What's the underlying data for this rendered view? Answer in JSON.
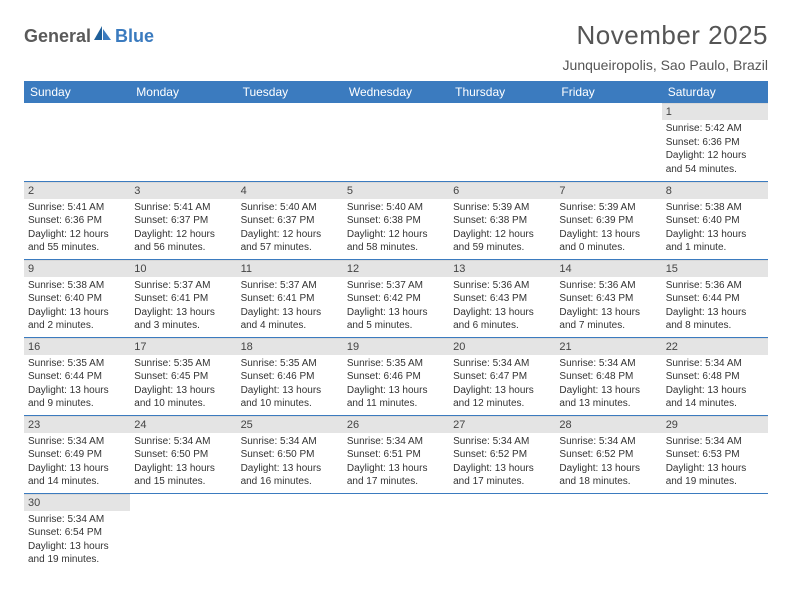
{
  "logo": {
    "text1": "General",
    "text2": "Blue"
  },
  "title": "November 2025",
  "location": "Junqueiropolis, Sao Paulo, Brazil",
  "colors": {
    "header_bg": "#3b7bbf",
    "header_text": "#ffffff",
    "daynum_bg": "#e4e4e4",
    "cell_border": "#3b7bbf",
    "body_text": "#333333",
    "title_text": "#555555"
  },
  "typography": {
    "title_fontsize": 26,
    "location_fontsize": 14,
    "weekday_fontsize": 12,
    "daynum_fontsize": 11,
    "cell_fontsize": 10
  },
  "weekdays": [
    "Sunday",
    "Monday",
    "Tuesday",
    "Wednesday",
    "Thursday",
    "Friday",
    "Saturday"
  ],
  "weeks": [
    [
      null,
      null,
      null,
      null,
      null,
      null,
      {
        "n": "1",
        "sr": "Sunrise: 5:42 AM",
        "ss": "Sunset: 6:36 PM",
        "d1": "Daylight: 12 hours",
        "d2": "and 54 minutes."
      }
    ],
    [
      {
        "n": "2",
        "sr": "Sunrise: 5:41 AM",
        "ss": "Sunset: 6:36 PM",
        "d1": "Daylight: 12 hours",
        "d2": "and 55 minutes."
      },
      {
        "n": "3",
        "sr": "Sunrise: 5:41 AM",
        "ss": "Sunset: 6:37 PM",
        "d1": "Daylight: 12 hours",
        "d2": "and 56 minutes."
      },
      {
        "n": "4",
        "sr": "Sunrise: 5:40 AM",
        "ss": "Sunset: 6:37 PM",
        "d1": "Daylight: 12 hours",
        "d2": "and 57 minutes."
      },
      {
        "n": "5",
        "sr": "Sunrise: 5:40 AM",
        "ss": "Sunset: 6:38 PM",
        "d1": "Daylight: 12 hours",
        "d2": "and 58 minutes."
      },
      {
        "n": "6",
        "sr": "Sunrise: 5:39 AM",
        "ss": "Sunset: 6:38 PM",
        "d1": "Daylight: 12 hours",
        "d2": "and 59 minutes."
      },
      {
        "n": "7",
        "sr": "Sunrise: 5:39 AM",
        "ss": "Sunset: 6:39 PM",
        "d1": "Daylight: 13 hours",
        "d2": "and 0 minutes."
      },
      {
        "n": "8",
        "sr": "Sunrise: 5:38 AM",
        "ss": "Sunset: 6:40 PM",
        "d1": "Daylight: 13 hours",
        "d2": "and 1 minute."
      }
    ],
    [
      {
        "n": "9",
        "sr": "Sunrise: 5:38 AM",
        "ss": "Sunset: 6:40 PM",
        "d1": "Daylight: 13 hours",
        "d2": "and 2 minutes."
      },
      {
        "n": "10",
        "sr": "Sunrise: 5:37 AM",
        "ss": "Sunset: 6:41 PM",
        "d1": "Daylight: 13 hours",
        "d2": "and 3 minutes."
      },
      {
        "n": "11",
        "sr": "Sunrise: 5:37 AM",
        "ss": "Sunset: 6:41 PM",
        "d1": "Daylight: 13 hours",
        "d2": "and 4 minutes."
      },
      {
        "n": "12",
        "sr": "Sunrise: 5:37 AM",
        "ss": "Sunset: 6:42 PM",
        "d1": "Daylight: 13 hours",
        "d2": "and 5 minutes."
      },
      {
        "n": "13",
        "sr": "Sunrise: 5:36 AM",
        "ss": "Sunset: 6:43 PM",
        "d1": "Daylight: 13 hours",
        "d2": "and 6 minutes."
      },
      {
        "n": "14",
        "sr": "Sunrise: 5:36 AM",
        "ss": "Sunset: 6:43 PM",
        "d1": "Daylight: 13 hours",
        "d2": "and 7 minutes."
      },
      {
        "n": "15",
        "sr": "Sunrise: 5:36 AM",
        "ss": "Sunset: 6:44 PM",
        "d1": "Daylight: 13 hours",
        "d2": "and 8 minutes."
      }
    ],
    [
      {
        "n": "16",
        "sr": "Sunrise: 5:35 AM",
        "ss": "Sunset: 6:44 PM",
        "d1": "Daylight: 13 hours",
        "d2": "and 9 minutes."
      },
      {
        "n": "17",
        "sr": "Sunrise: 5:35 AM",
        "ss": "Sunset: 6:45 PM",
        "d1": "Daylight: 13 hours",
        "d2": "and 10 minutes."
      },
      {
        "n": "18",
        "sr": "Sunrise: 5:35 AM",
        "ss": "Sunset: 6:46 PM",
        "d1": "Daylight: 13 hours",
        "d2": "and 10 minutes."
      },
      {
        "n": "19",
        "sr": "Sunrise: 5:35 AM",
        "ss": "Sunset: 6:46 PM",
        "d1": "Daylight: 13 hours",
        "d2": "and 11 minutes."
      },
      {
        "n": "20",
        "sr": "Sunrise: 5:34 AM",
        "ss": "Sunset: 6:47 PM",
        "d1": "Daylight: 13 hours",
        "d2": "and 12 minutes."
      },
      {
        "n": "21",
        "sr": "Sunrise: 5:34 AM",
        "ss": "Sunset: 6:48 PM",
        "d1": "Daylight: 13 hours",
        "d2": "and 13 minutes."
      },
      {
        "n": "22",
        "sr": "Sunrise: 5:34 AM",
        "ss": "Sunset: 6:48 PM",
        "d1": "Daylight: 13 hours",
        "d2": "and 14 minutes."
      }
    ],
    [
      {
        "n": "23",
        "sr": "Sunrise: 5:34 AM",
        "ss": "Sunset: 6:49 PM",
        "d1": "Daylight: 13 hours",
        "d2": "and 14 minutes."
      },
      {
        "n": "24",
        "sr": "Sunrise: 5:34 AM",
        "ss": "Sunset: 6:50 PM",
        "d1": "Daylight: 13 hours",
        "d2": "and 15 minutes."
      },
      {
        "n": "25",
        "sr": "Sunrise: 5:34 AM",
        "ss": "Sunset: 6:50 PM",
        "d1": "Daylight: 13 hours",
        "d2": "and 16 minutes."
      },
      {
        "n": "26",
        "sr": "Sunrise: 5:34 AM",
        "ss": "Sunset: 6:51 PM",
        "d1": "Daylight: 13 hours",
        "d2": "and 17 minutes."
      },
      {
        "n": "27",
        "sr": "Sunrise: 5:34 AM",
        "ss": "Sunset: 6:52 PM",
        "d1": "Daylight: 13 hours",
        "d2": "and 17 minutes."
      },
      {
        "n": "28",
        "sr": "Sunrise: 5:34 AM",
        "ss": "Sunset: 6:52 PM",
        "d1": "Daylight: 13 hours",
        "d2": "and 18 minutes."
      },
      {
        "n": "29",
        "sr": "Sunrise: 5:34 AM",
        "ss": "Sunset: 6:53 PM",
        "d1": "Daylight: 13 hours",
        "d2": "and 19 minutes."
      }
    ],
    [
      {
        "n": "30",
        "sr": "Sunrise: 5:34 AM",
        "ss": "Sunset: 6:54 PM",
        "d1": "Daylight: 13 hours",
        "d2": "and 19 minutes."
      },
      null,
      null,
      null,
      null,
      null,
      null
    ]
  ]
}
